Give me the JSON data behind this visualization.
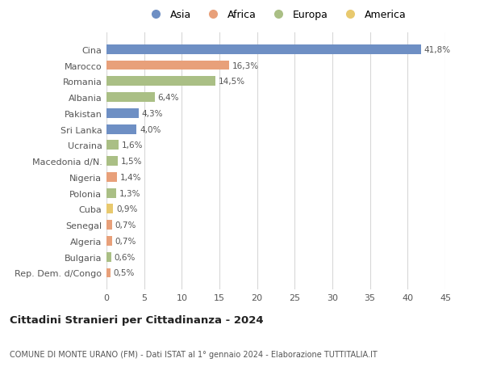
{
  "categories": [
    "Rep. Dem. d/Congo",
    "Bulgaria",
    "Algeria",
    "Senegal",
    "Cuba",
    "Polonia",
    "Nigeria",
    "Macedonia d/N.",
    "Ucraina",
    "Sri Lanka",
    "Pakistan",
    "Albania",
    "Romania",
    "Marocco",
    "Cina"
  ],
  "values": [
    0.5,
    0.6,
    0.7,
    0.7,
    0.9,
    1.3,
    1.4,
    1.5,
    1.6,
    4.0,
    4.3,
    6.4,
    14.5,
    16.3,
    41.8
  ],
  "labels": [
    "0,5%",
    "0,6%",
    "0,7%",
    "0,7%",
    "0,9%",
    "1,3%",
    "1,4%",
    "1,5%",
    "1,6%",
    "4,0%",
    "4,3%",
    "6,4%",
    "14,5%",
    "16,3%",
    "41,8%"
  ],
  "colors": [
    "#e8a07a",
    "#aabf85",
    "#e8a07a",
    "#e8a07a",
    "#e8c96e",
    "#aabf85",
    "#e8a07a",
    "#aabf85",
    "#aabf85",
    "#6e8fc4",
    "#6e8fc4",
    "#aabf85",
    "#aabf85",
    "#e8a07a",
    "#6e8fc4"
  ],
  "continent_colors": {
    "Asia": "#6e8fc4",
    "Africa": "#e8a07a",
    "Europa": "#aabf85",
    "America": "#e8c96e"
  },
  "title": "Cittadini Stranieri per Cittadinanza - 2024",
  "subtitle": "COMUNE DI MONTE URANO (FM) - Dati ISTAT al 1° gennaio 2024 - Elaborazione TUTTITALIA.IT",
  "xlim": [
    0,
    45
  ],
  "xticks": [
    0,
    5,
    10,
    15,
    20,
    25,
    30,
    35,
    40,
    45
  ],
  "bg_color": "#ffffff",
  "grid_color": "#d8d8d8"
}
